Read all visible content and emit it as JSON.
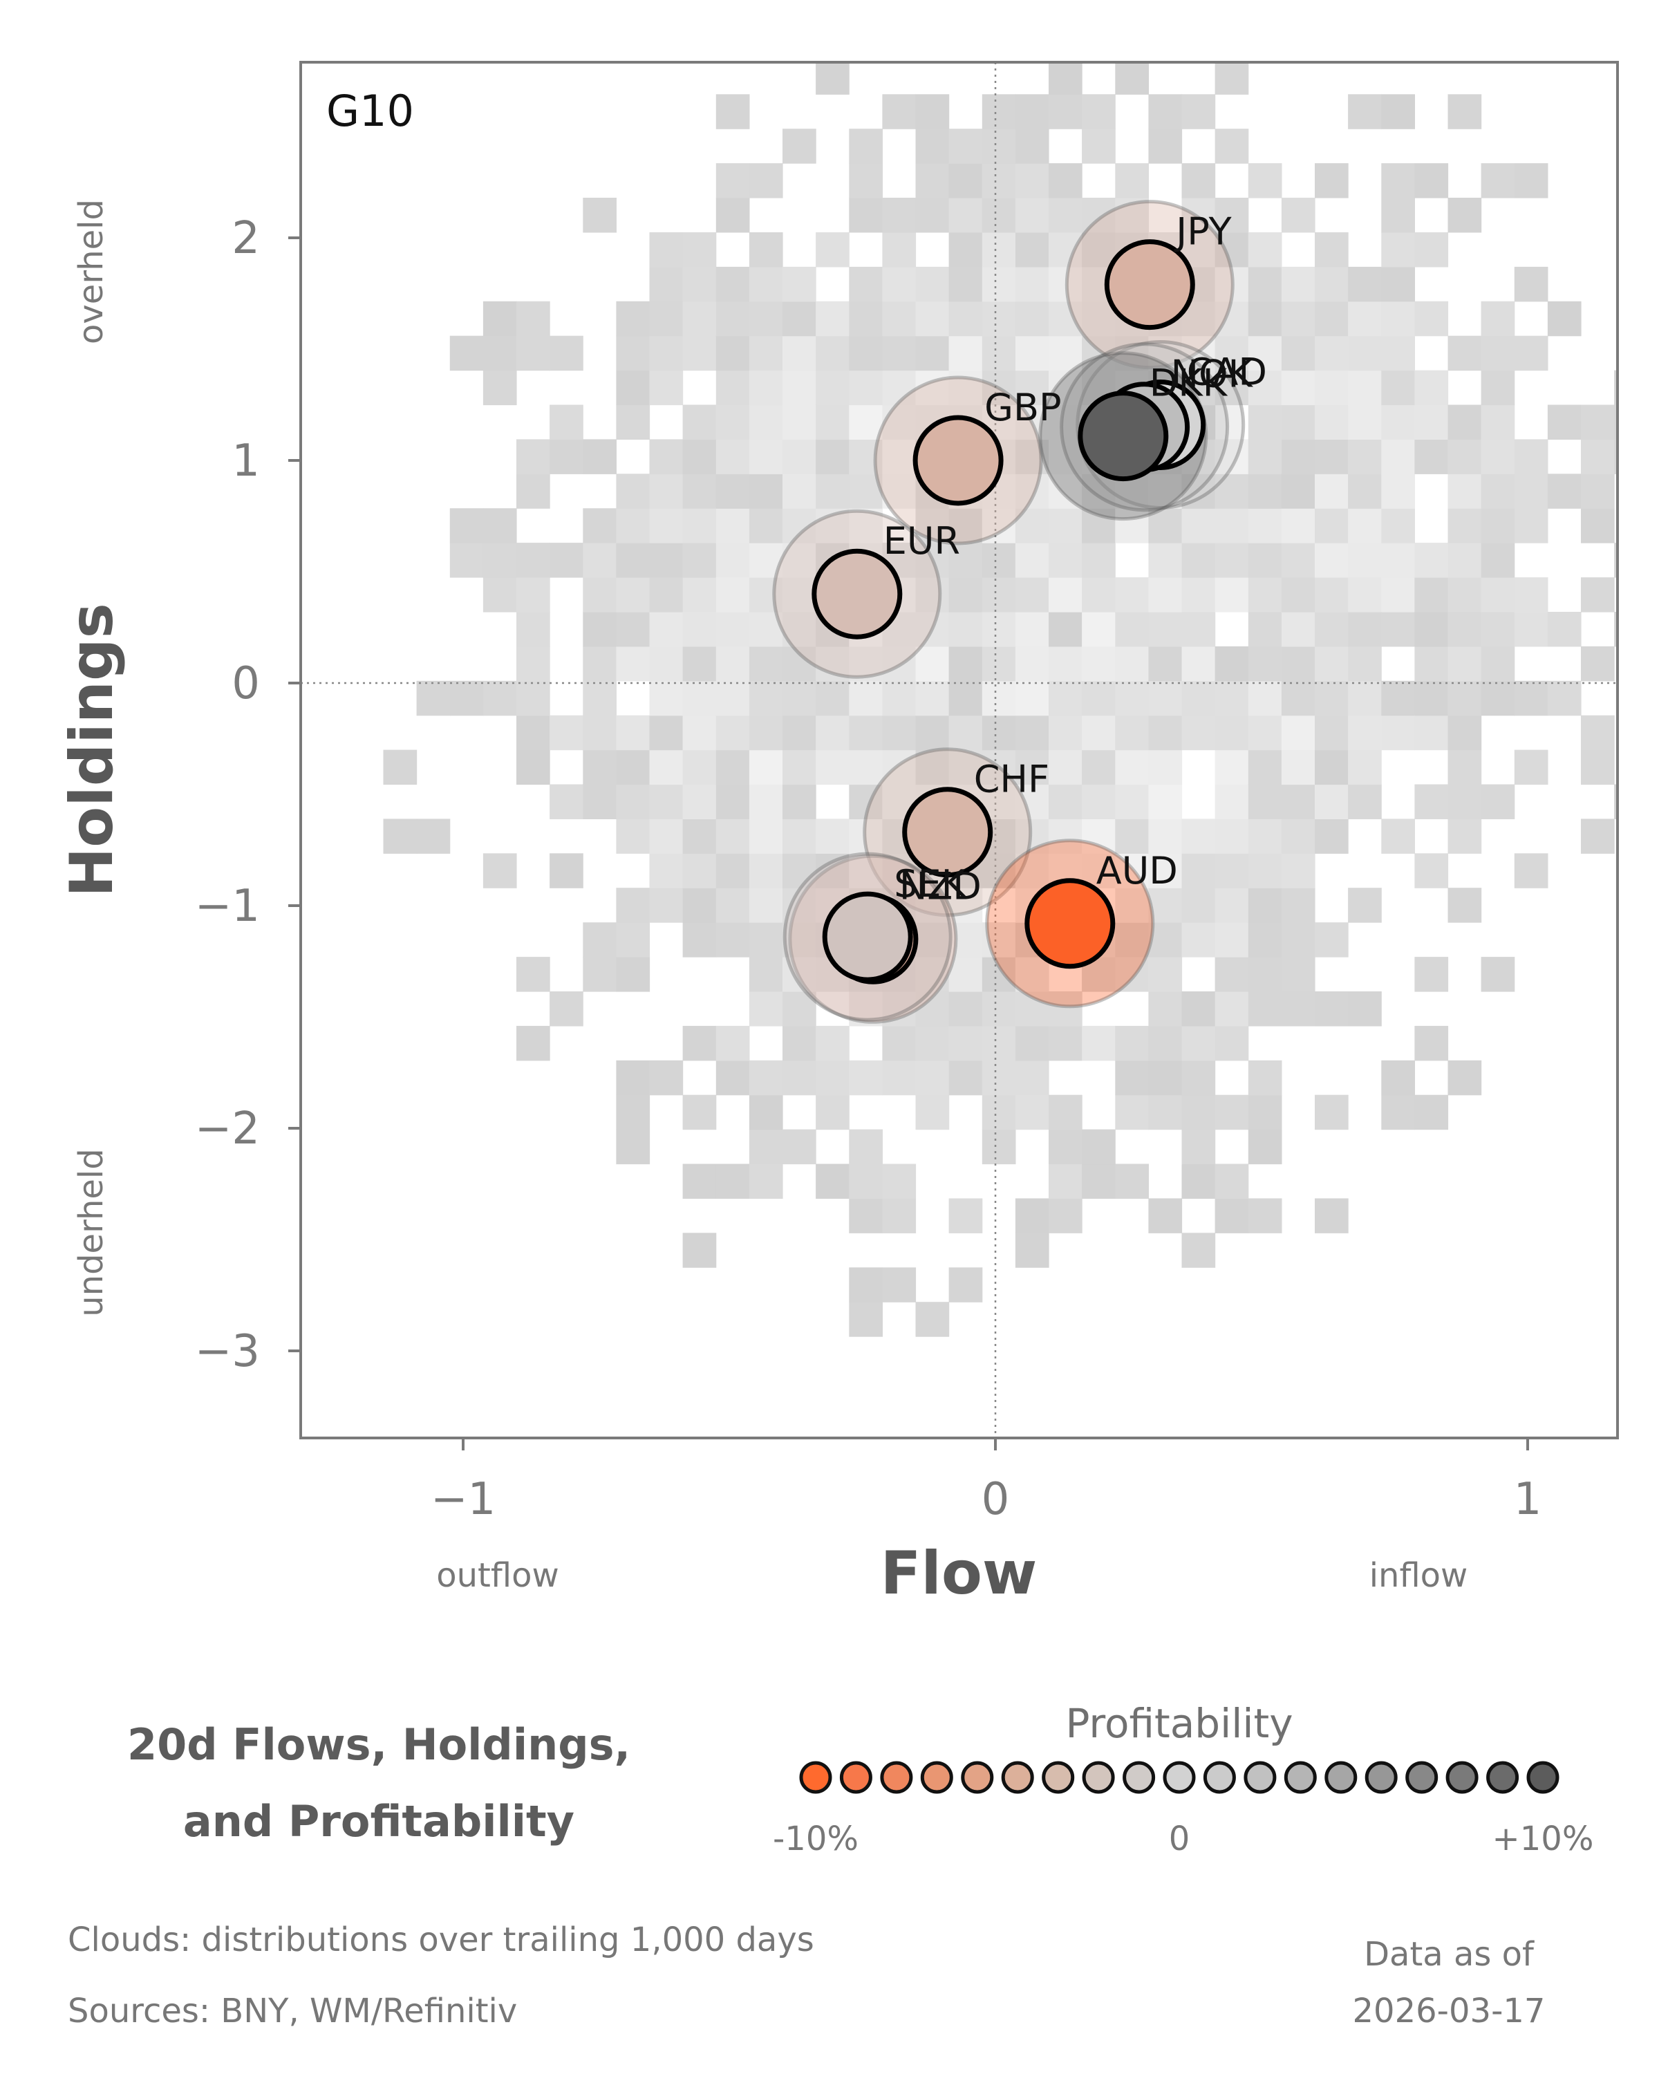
{
  "chart_data": {
    "type": "scatter",
    "panel_label": "G10",
    "title_lines": [
      "20d Flows, Holdings,",
      "and Profitability"
    ],
    "xlabel": "Flow",
    "ylabel": "Holdings",
    "x_hint_low": "outflow",
    "x_hint_high": "inflow",
    "y_hint_high": "overheld",
    "y_hint_low": "underheld",
    "xlim": [
      -1.3,
      1.17
    ],
    "ylim": [
      -3.4,
      2.8
    ],
    "x_ticks": [
      {
        "v": -1,
        "label": "−1"
      },
      {
        "v": 0,
        "label": "0"
      },
      {
        "v": 1,
        "label": "1"
      }
    ],
    "y_ticks": [
      {
        "v": -3,
        "label": "−3"
      },
      {
        "v": -2,
        "label": "−2"
      },
      {
        "v": -1,
        "label": "−1"
      },
      {
        "v": 0,
        "label": "0"
      },
      {
        "v": 1,
        "label": "1"
      },
      {
        "v": 2,
        "label": "2"
      }
    ],
    "reference_lines": {
      "x": 0,
      "y": 0
    },
    "points": [
      {
        "ccy": "JPY",
        "flow": 0.29,
        "holdings": 1.79,
        "color": "#d9b2a3"
      },
      {
        "ccy": "CAD",
        "flow": 0.31,
        "holdings": 1.16,
        "color": "#d4d4d4"
      },
      {
        "ccy": "NOK",
        "flow": 0.28,
        "holdings": 1.15,
        "color": "#bdbdbd"
      },
      {
        "ccy": "GBP",
        "flow": -0.07,
        "holdings": 1.0,
        "color": "#d8b3a4"
      },
      {
        "ccy": "DKK",
        "flow": 0.24,
        "holdings": 1.11,
        "color": "#5e5e5e"
      },
      {
        "ccy": "EUR",
        "flow": -0.26,
        "holdings": 0.4,
        "color": "#d6bdb4"
      },
      {
        "ccy": "CHF",
        "flow": -0.09,
        "holdings": -0.67,
        "color": "#d8b6a8"
      },
      {
        "ccy": "AUD",
        "flow": 0.14,
        "holdings": -1.08,
        "color": "#fc6127"
      },
      {
        "ccy": "NZD",
        "flow": -0.23,
        "holdings": -1.15,
        "color": "#e2b2a2"
      },
      {
        "ccy": "SEK",
        "flow": -0.24,
        "holdings": -1.14,
        "color": "#d0c3bf"
      },
      {
        "ccy": "EUR2",
        "hidden": true
      }
    ],
    "legend": {
      "title": "Profitability",
      "tick_low": "-10%",
      "tick_mid": "0",
      "tick_high": "+10%",
      "swatches": [
        "#ff6a2e",
        "#f7784a",
        "#f0875e",
        "#e99672",
        "#e3a386",
        "#dcb09a",
        "#d7bcad",
        "#d3c5bd",
        "#d0cbc8",
        "#d2d2d2",
        "#cbcbcb",
        "#c1c1c1",
        "#b5b5b5",
        "#a6a6a6",
        "#979797",
        "#888888",
        "#7a7a7a",
        "#6b6b6b",
        "#5c5c5c"
      ]
    }
  },
  "footer": {
    "clouds_note": "Clouds:  distributions over trailing 1,000 days",
    "sources_note": "Sources:  BNY, WM/Refinitiv",
    "asof_label": "Data as of",
    "asof_date": "2026-03-17"
  }
}
